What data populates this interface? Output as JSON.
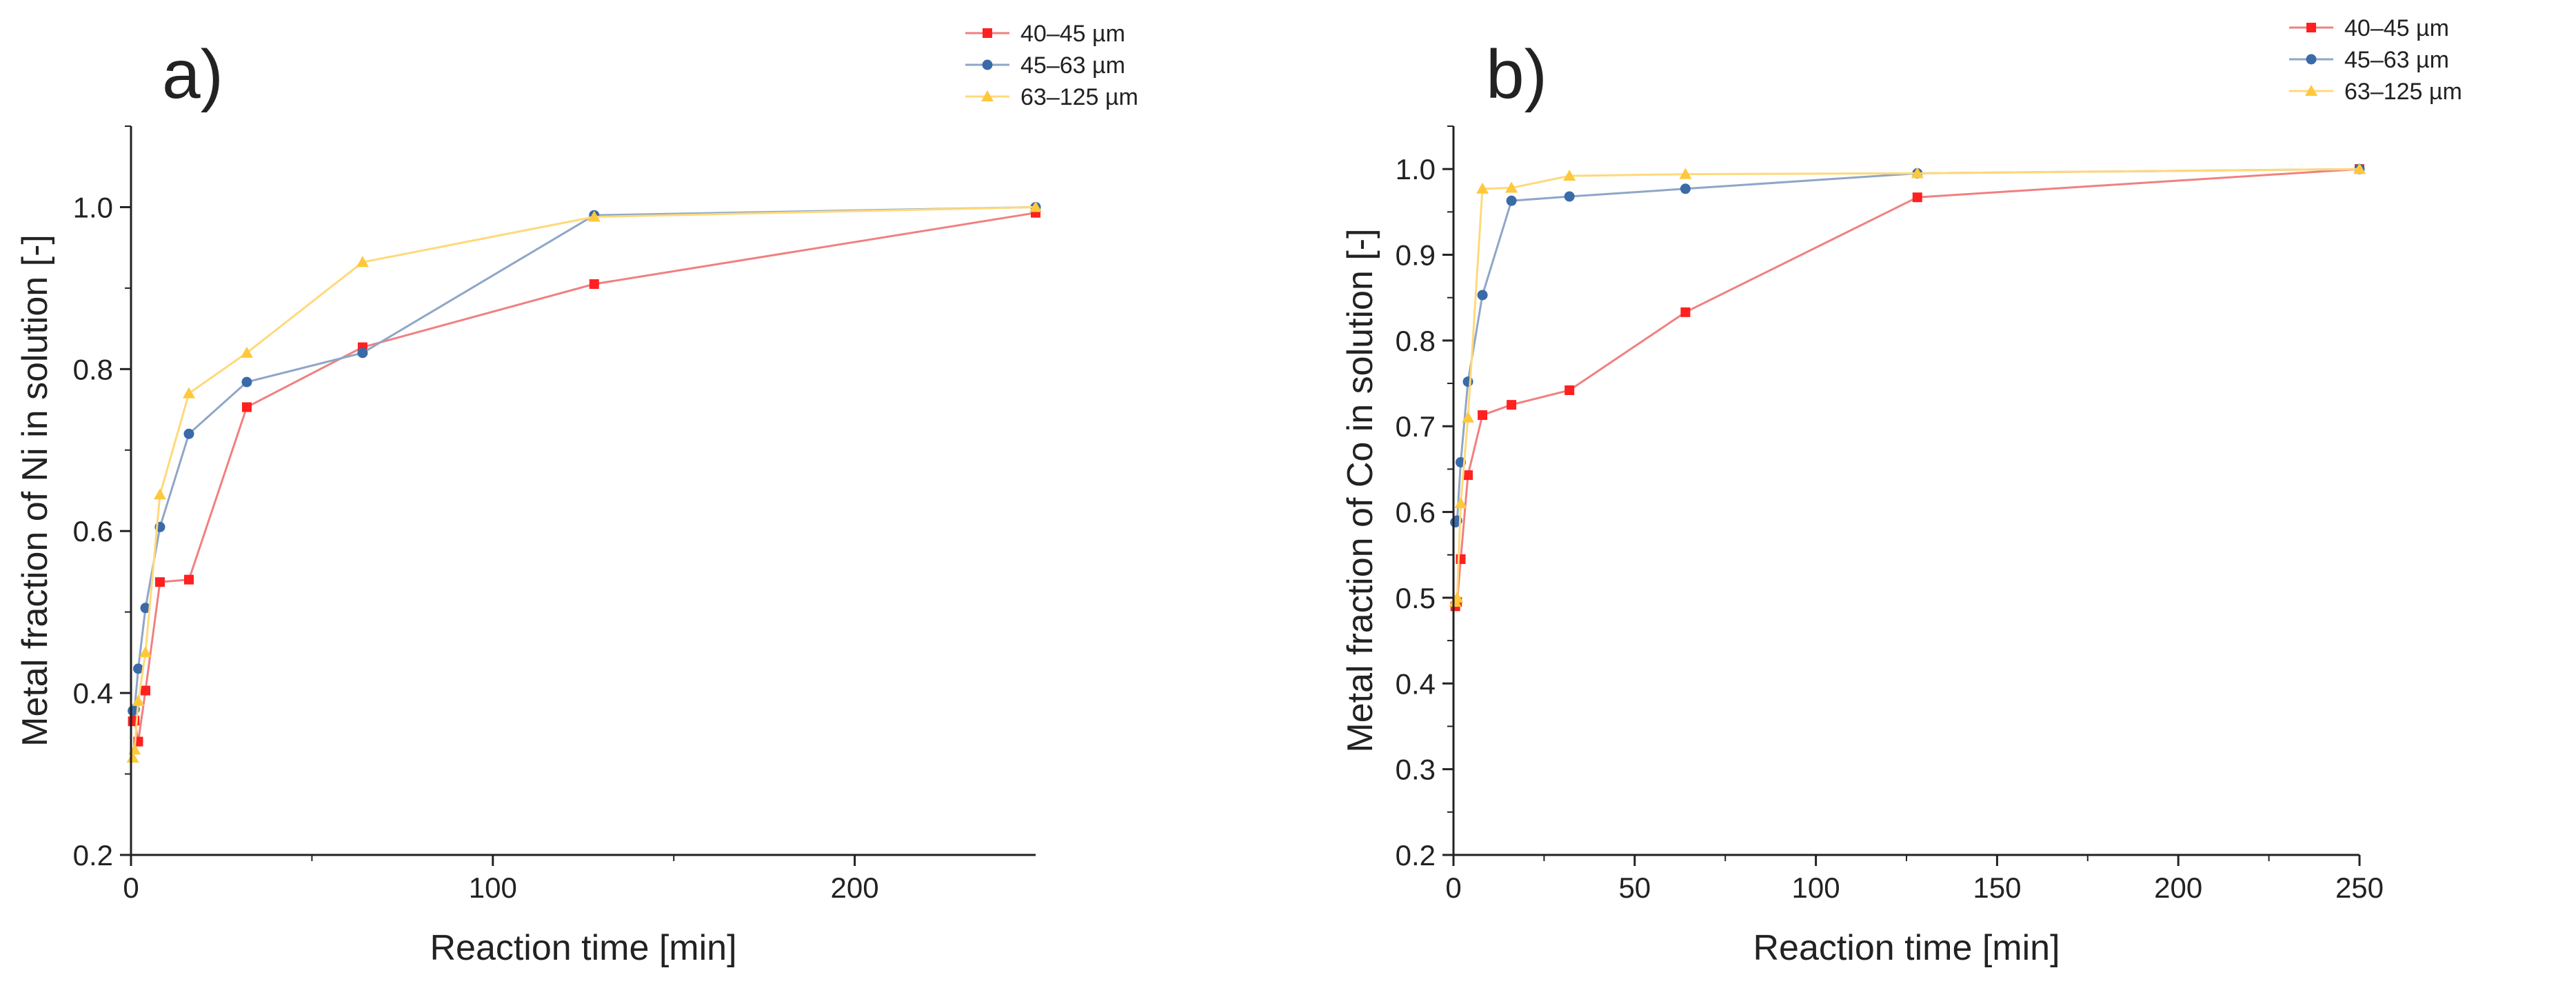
{
  "colors": {
    "40-45": "#ff2020",
    "45-63": "#3a6aa8",
    "63-125": "#ffc83a",
    "line_40-45": "#f08080",
    "line_45-63": "#8ea6c8",
    "line_63-125": "#ffd97a"
  },
  "chart_data": [
    {
      "type": "line",
      "panel_label": "a)",
      "title": "",
      "xlabel": "Reaction time [min]",
      "ylabel": "Metal fraction of Ni in solution [-]",
      "xlim": [
        0,
        250
      ],
      "ylim": [
        0.2,
        1.1
      ],
      "x_ticks": [
        0,
        100,
        200
      ],
      "y_ticks": [
        0.2,
        0.4,
        0.6,
        0.8,
        1.0
      ],
      "x_tick_labels": [
        "0",
        "100",
        "200"
      ],
      "y_tick_labels": [
        "0.2",
        "0.4",
        "0.6",
        "0.8",
        "1.0"
      ],
      "legend_position": "top-right",
      "series": [
        {
          "name": "40–45 µm",
          "key": "40-45",
          "marker": "square",
          "x": [
            0.5,
            1,
            2,
            4,
            8,
            16,
            32,
            64,
            128,
            250
          ],
          "y": [
            0.365,
            0.366,
            0.34,
            0.403,
            0.537,
            0.54,
            0.753,
            0.827,
            0.905,
            0.993
          ]
        },
        {
          "name": "45–63 µm",
          "key": "45-63",
          "marker": "circle",
          "x": [
            0.5,
            1,
            2,
            4,
            8,
            16,
            32,
            64,
            128,
            250
          ],
          "y": [
            0.378,
            0.38,
            0.43,
            0.505,
            0.605,
            0.72,
            0.784,
            0.82,
            0.99,
            1.0
          ]
        },
        {
          "name": "63–125 µm",
          "key": "63-125",
          "marker": "triangle",
          "x": [
            0.5,
            1,
            2,
            4,
            8,
            16,
            32,
            64,
            128,
            250
          ],
          "y": [
            0.32,
            0.33,
            0.39,
            0.45,
            0.645,
            0.77,
            0.82,
            0.932,
            0.988,
            1.0
          ]
        }
      ]
    },
    {
      "type": "line",
      "panel_label": "b)",
      "title": "",
      "xlabel": "Reaction time [min]",
      "ylabel": "Metal fraction of Co in solution [-]",
      "xlim": [
        0,
        250
      ],
      "ylim": [
        0.2,
        1.05
      ],
      "x_ticks": [
        0,
        50,
        100,
        150,
        200,
        250
      ],
      "y_ticks": [
        0.2,
        0.3,
        0.4,
        0.5,
        0.6,
        0.7,
        0.8,
        0.9,
        1.0
      ],
      "x_tick_labels": [
        "0",
        "50",
        "100",
        "150",
        "200",
        "250"
      ],
      "y_tick_labels": [
        "0.2",
        "0.3",
        "0.4",
        "0.5",
        "0.6",
        "0.7",
        "0.8",
        "0.9",
        "1.0"
      ],
      "legend_position": "top-right",
      "series": [
        {
          "name": "40–45 µm",
          "key": "40-45",
          "marker": "square",
          "x": [
            0.5,
            1,
            2,
            4,
            8,
            16,
            32,
            64,
            128,
            250
          ],
          "y": [
            0.49,
            0.495,
            0.545,
            0.643,
            0.713,
            0.725,
            0.742,
            0.833,
            0.967,
            1.0
          ]
        },
        {
          "name": "45–63 µm",
          "key": "45-63",
          "marker": "circle",
          "x": [
            0.5,
            1,
            2,
            4,
            8,
            16,
            32,
            64,
            128,
            250
          ],
          "y": [
            0.588,
            0.59,
            0.658,
            0.752,
            0.853,
            0.963,
            0.968,
            0.977,
            0.995,
            1.0
          ]
        },
        {
          "name": "63–125 µm",
          "key": "63-125",
          "marker": "triangle",
          "x": [
            0.5,
            1,
            2,
            4,
            8,
            16,
            32,
            64,
            128,
            250
          ],
          "y": [
            0.495,
            0.5,
            0.61,
            0.71,
            0.977,
            0.978,
            0.992,
            0.994,
            0.995,
            1.0
          ]
        }
      ]
    }
  ]
}
